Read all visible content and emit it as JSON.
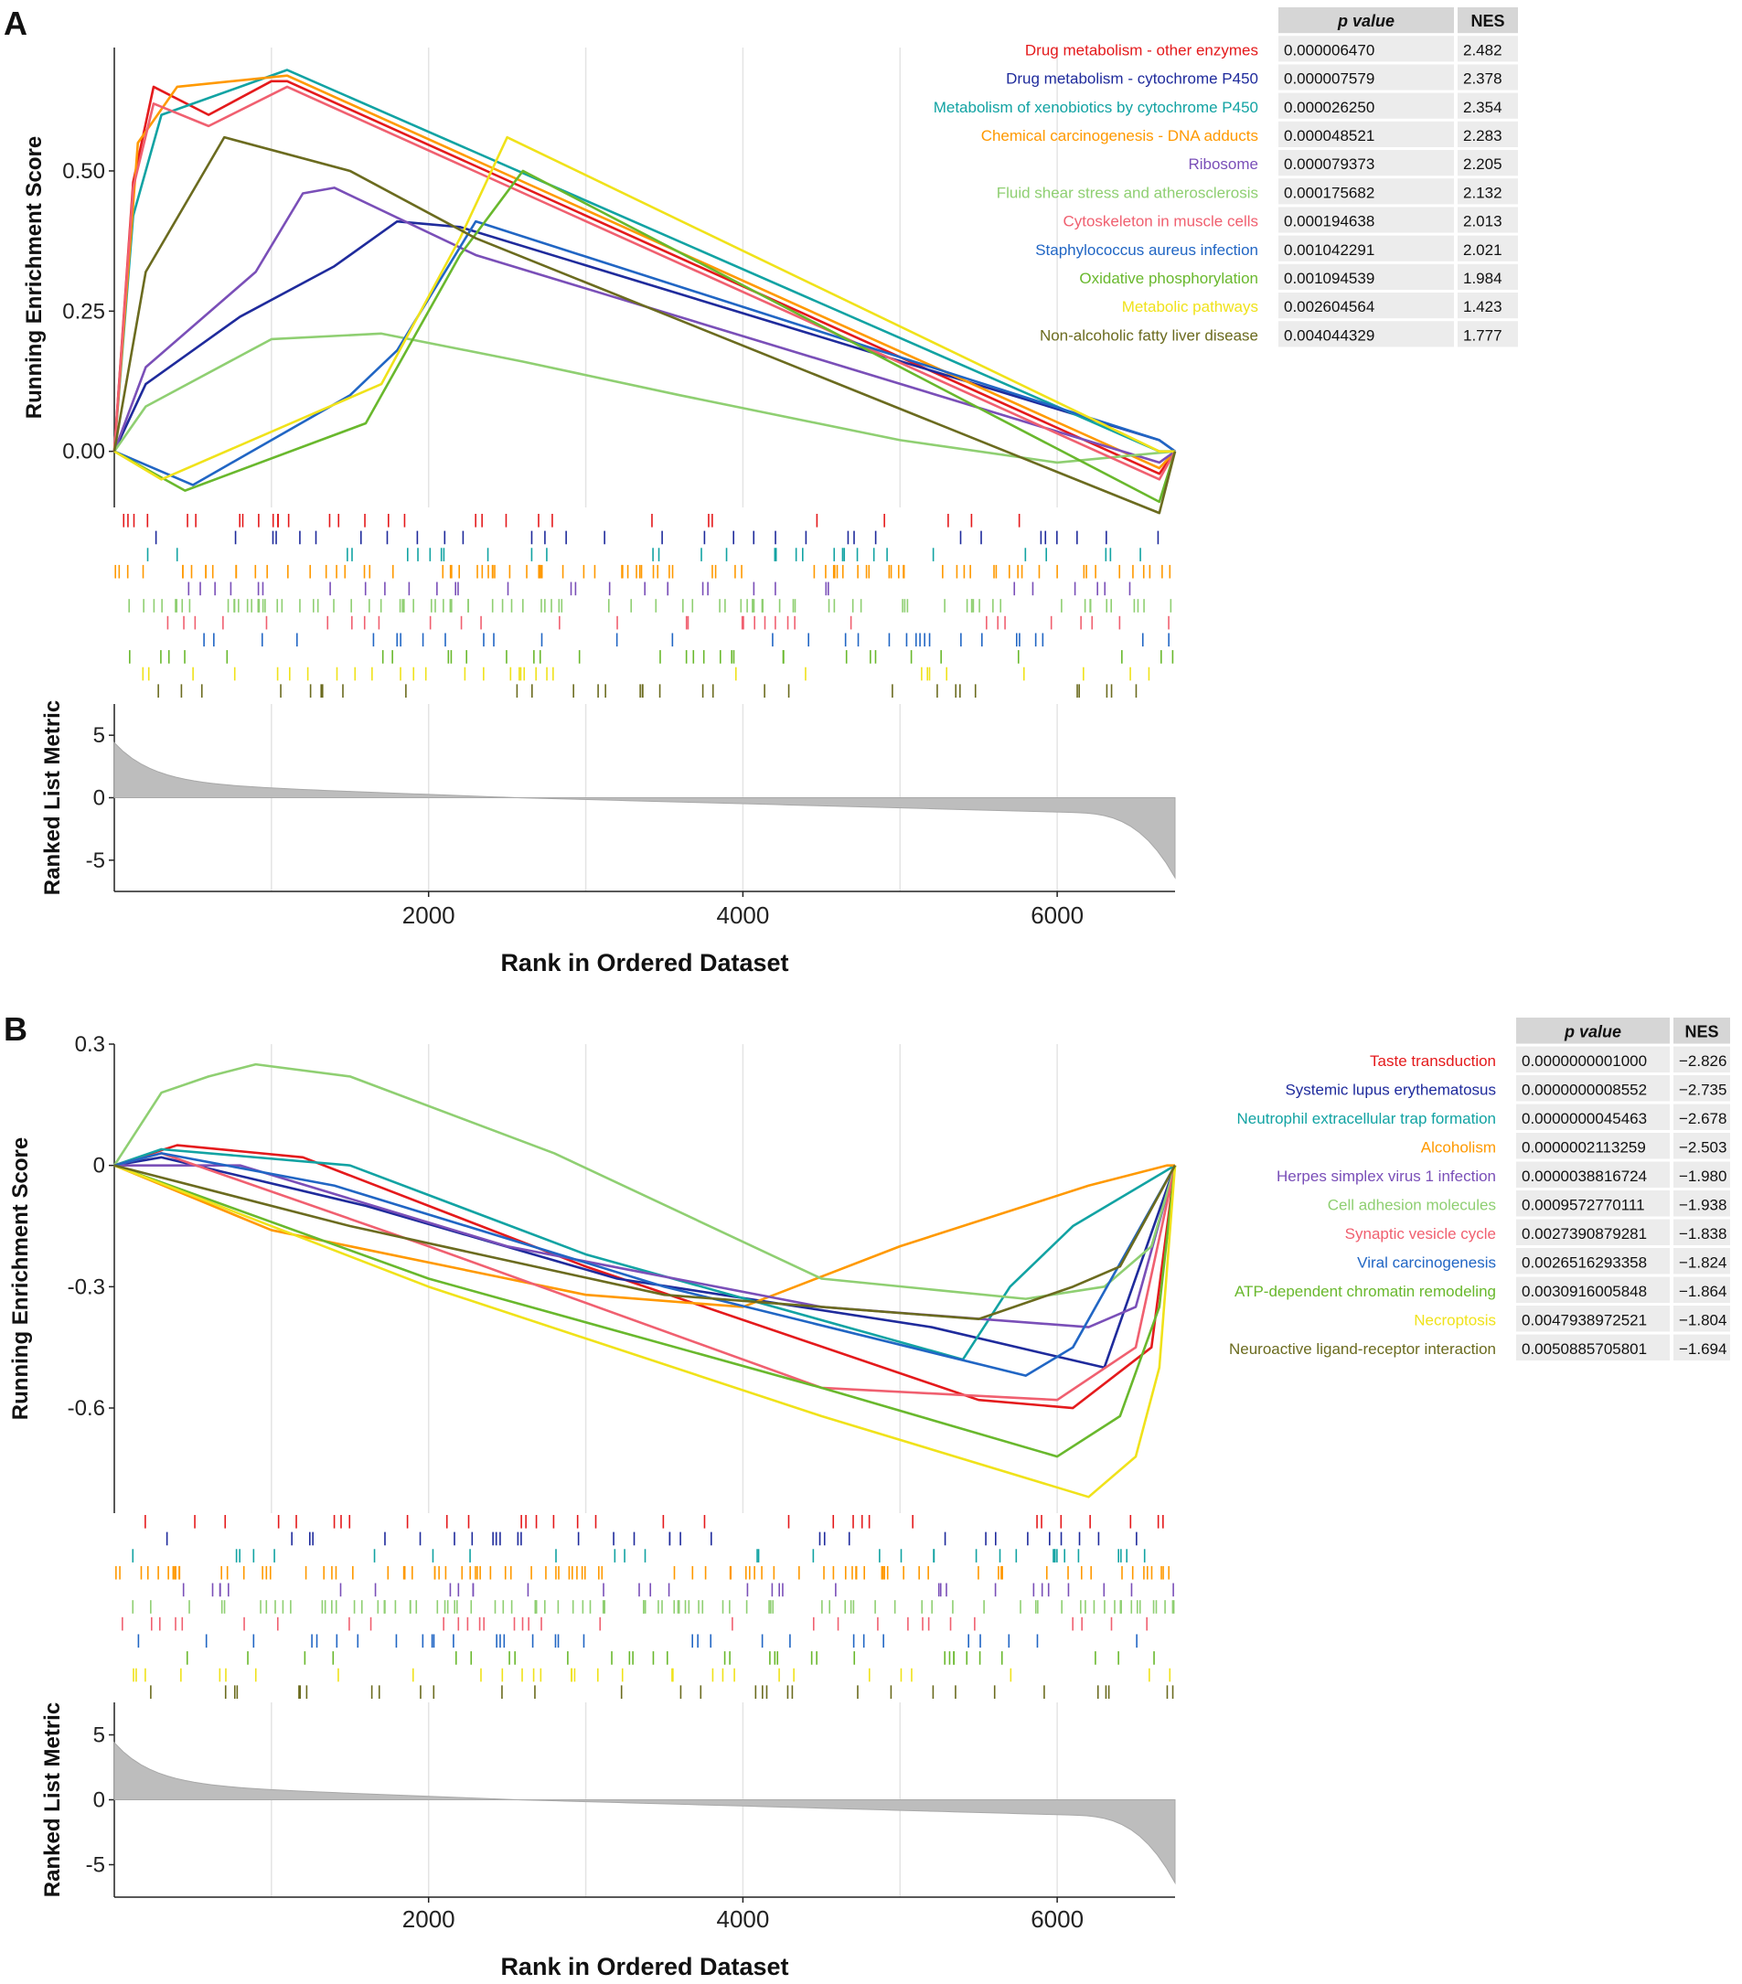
{
  "colors": {
    "red": "#e41a1c",
    "navy": "#1f2b9c",
    "teal": "#12a3a3",
    "orange": "#ff9900",
    "purple": "#7a4fb8",
    "lightgreen": "#8fcf72",
    "salmon": "#f06070",
    "blue": "#2166c4",
    "green": "#69b82d",
    "yellow": "#f0e21a",
    "olive": "#6b6b1f"
  },
  "table_header": {
    "pvalue": "p value",
    "nes": "NES"
  },
  "chart_data": [
    {
      "type": "line",
      "panel_label": "A",
      "title": "",
      "xlabel": "Rank in Ordered Dataset",
      "ylabel": "Running Enrichment Score",
      "ylabel_bottom": "Ranked List Metric",
      "xlim": [
        0,
        6750
      ],
      "ylim": [
        -0.1,
        0.72
      ],
      "yticks": [
        0,
        0.25,
        0.5
      ],
      "ytick_labels": [
        "0.00",
        "0.25",
        "0.50"
      ],
      "xticks": [
        2000,
        4000,
        6000
      ],
      "xtick_labels": [
        "2000",
        "4000",
        "6000"
      ],
      "metric_ylim": [
        -7.5,
        7.5
      ],
      "metric_yticks": [
        -5,
        0,
        5
      ],
      "metric_ytick_labels": [
        "-5",
        "0",
        "5"
      ],
      "legend_position": "top-right",
      "series": [
        {
          "name": "Drug metabolism - other enzymes",
          "color_key": "red",
          "pvalue": "0.000006470",
          "nes": "2.482",
          "points": [
            [
              0,
              0
            ],
            [
              120,
              0.48
            ],
            [
              250,
              0.65
            ],
            [
              600,
              0.6
            ],
            [
              1000,
              0.66
            ],
            [
              1100,
              0.66
            ],
            [
              6650,
              -0.04
            ],
            [
              6750,
              0
            ]
          ]
        },
        {
          "name": "Drug metabolism - cytochrome P450",
          "color_key": "navy",
          "pvalue": "0.000007579",
          "nes": "2.378",
          "points": [
            [
              0,
              0
            ],
            [
              200,
              0.12
            ],
            [
              800,
              0.24
            ],
            [
              1400,
              0.33
            ],
            [
              1800,
              0.41
            ],
            [
              2200,
              0.4
            ],
            [
              6650,
              0.02
            ],
            [
              6750,
              0
            ]
          ]
        },
        {
          "name": "Metabolism of xenobiotics by cytochrome P450",
          "color_key": "teal",
          "pvalue": "0.000026250",
          "nes": "2.354",
          "points": [
            [
              0,
              0
            ],
            [
              120,
              0.42
            ],
            [
              300,
              0.6
            ],
            [
              1100,
              0.68
            ],
            [
              6650,
              0.0
            ],
            [
              6750,
              0
            ]
          ]
        },
        {
          "name": "Chemical carcinogenesis - DNA adducts",
          "color_key": "orange",
          "pvalue": "0.000048521",
          "nes": "2.283",
          "points": [
            [
              0,
              0
            ],
            [
              150,
              0.55
            ],
            [
              400,
              0.65
            ],
            [
              1100,
              0.67
            ],
            [
              6650,
              -0.03
            ],
            [
              6750,
              0
            ]
          ]
        },
        {
          "name": "Ribosome",
          "color_key": "purple",
          "pvalue": "0.000079373",
          "nes": "2.205",
          "points": [
            [
              0,
              0
            ],
            [
              200,
              0.15
            ],
            [
              900,
              0.32
            ],
            [
              1200,
              0.46
            ],
            [
              1400,
              0.47
            ],
            [
              2300,
              0.35
            ],
            [
              6650,
              -0.02
            ],
            [
              6750,
              0
            ]
          ]
        },
        {
          "name": "Fluid shear stress and atherosclerosis",
          "color_key": "lightgreen",
          "pvalue": "0.000175682",
          "nes": "2.132",
          "points": [
            [
              0,
              0
            ],
            [
              200,
              0.08
            ],
            [
              1000,
              0.2
            ],
            [
              1700,
              0.21
            ],
            [
              2600,
              0.16
            ],
            [
              3600,
              0.1
            ],
            [
              5000,
              0.02
            ],
            [
              6000,
              -0.02
            ],
            [
              6750,
              0
            ]
          ]
        },
        {
          "name": "Cytoskeleton in muscle cells",
          "color_key": "salmon",
          "pvalue": "0.000194638",
          "nes": "2.013",
          "points": [
            [
              0,
              0
            ],
            [
              120,
              0.47
            ],
            [
              250,
              0.62
            ],
            [
              600,
              0.58
            ],
            [
              1100,
              0.65
            ],
            [
              6650,
              -0.05
            ],
            [
              6750,
              0
            ]
          ]
        },
        {
          "name": "Staphylococcus aureus infection",
          "color_key": "blue",
          "pvalue": "0.001042291",
          "nes": "2.021",
          "points": [
            [
              0,
              0
            ],
            [
              500,
              -0.06
            ],
            [
              1500,
              0.1
            ],
            [
              1800,
              0.18
            ],
            [
              2300,
              0.41
            ],
            [
              6650,
              0.02
            ],
            [
              6750,
              0
            ]
          ]
        },
        {
          "name": "Oxidative phosphorylation",
          "color_key": "green",
          "pvalue": "0.001094539",
          "nes": "1.984",
          "points": [
            [
              0,
              0
            ],
            [
              450,
              -0.07
            ],
            [
              1600,
              0.05
            ],
            [
              2200,
              0.35
            ],
            [
              2600,
              0.5
            ],
            [
              6650,
              -0.09
            ],
            [
              6750,
              0
            ]
          ]
        },
        {
          "name": "Metabolic pathways",
          "color_key": "yellow",
          "pvalue": "0.002604564",
          "nes": "1.423",
          "points": [
            [
              0,
              0
            ],
            [
              300,
              -0.05
            ],
            [
              1700,
              0.12
            ],
            [
              2200,
              0.38
            ],
            [
              2500,
              0.56
            ],
            [
              6650,
              0.0
            ],
            [
              6750,
              0
            ]
          ]
        },
        {
          "name": "Non-alcoholic fatty liver disease",
          "color_key": "olive",
          "pvalue": "0.004044329",
          "nes": "1.777",
          "points": [
            [
              0,
              0
            ],
            [
              200,
              0.32
            ],
            [
              700,
              0.56
            ],
            [
              1500,
              0.5
            ],
            [
              2300,
              0.38
            ],
            [
              6650,
              -0.11
            ],
            [
              6750,
              0
            ]
          ]
        }
      ]
    },
    {
      "type": "line",
      "panel_label": "B",
      "title": "",
      "xlabel": "Rank in Ordered Dataset",
      "ylabel": "Running Enrichment Score",
      "ylabel_bottom": "Ranked List Metric",
      "xlim": [
        0,
        6750
      ],
      "ylim": [
        -0.86,
        0.3
      ],
      "yticks": [
        -0.6,
        -0.3,
        0,
        0.3
      ],
      "ytick_labels": [
        "-0.6",
        "-0.3",
        "0",
        "0.3"
      ],
      "xticks": [
        2000,
        4000,
        6000
      ],
      "xtick_labels": [
        "2000",
        "4000",
        "6000"
      ],
      "metric_ylim": [
        -7.5,
        7.5
      ],
      "metric_yticks": [
        -5,
        0,
        5
      ],
      "metric_ytick_labels": [
        "-5",
        "0",
        "5"
      ],
      "legend_position": "top-right",
      "series": [
        {
          "name": "Taste transduction",
          "color_key": "red",
          "pvalue": "0.0000000001000",
          "nes": "−2.826",
          "points": [
            [
              0,
              0
            ],
            [
              400,
              0.05
            ],
            [
              1200,
              0.02
            ],
            [
              3000,
              -0.25
            ],
            [
              5500,
              -0.58
            ],
            [
              6100,
              -0.6
            ],
            [
              6600,
              -0.45
            ],
            [
              6750,
              0
            ]
          ]
        },
        {
          "name": "Systemic lupus erythematosus",
          "color_key": "navy",
          "pvalue": "0.0000000008552",
          "nes": "−2.735",
          "points": [
            [
              0,
              0
            ],
            [
              300,
              0.02
            ],
            [
              1600,
              -0.1
            ],
            [
              3200,
              -0.28
            ],
            [
              5200,
              -0.4
            ],
            [
              6300,
              -0.5
            ],
            [
              6750,
              0
            ]
          ]
        },
        {
          "name": "Neutrophil extracellular trap formation",
          "color_key": "teal",
          "pvalue": "0.0000000045463",
          "nes": "−2.678",
          "points": [
            [
              0,
              0
            ],
            [
              300,
              0.04
            ],
            [
              1500,
              0.0
            ],
            [
              3000,
              -0.22
            ],
            [
              5400,
              -0.48
            ],
            [
              5700,
              -0.3
            ],
            [
              6100,
              -0.15
            ],
            [
              6750,
              0
            ]
          ]
        },
        {
          "name": "Alcoholism",
          "color_key": "orange",
          "pvalue": "0.0000002113259",
          "nes": "−2.503",
          "points": [
            [
              0,
              0
            ],
            [
              1000,
              -0.16
            ],
            [
              3000,
              -0.32
            ],
            [
              4000,
              -0.35
            ],
            [
              5000,
              -0.2
            ],
            [
              6200,
              -0.05
            ],
            [
              6700,
              0
            ],
            [
              6750,
              0
            ]
          ]
        },
        {
          "name": "Herpes simplex virus 1 infection",
          "color_key": "purple",
          "pvalue": "0.0000038816724",
          "nes": "−1.980",
          "points": [
            [
              0,
              0
            ],
            [
              800,
              0.0
            ],
            [
              2500,
              -0.2
            ],
            [
              4500,
              -0.35
            ],
            [
              6200,
              -0.4
            ],
            [
              6500,
              -0.35
            ],
            [
              6750,
              0
            ]
          ]
        },
        {
          "name": "Cell adhesion molecules",
          "color_key": "lightgreen",
          "pvalue": "0.0009572770111",
          "nes": "−1.938",
          "points": [
            [
              0,
              0
            ],
            [
              300,
              0.18
            ],
            [
              600,
              0.22
            ],
            [
              900,
              0.25
            ],
            [
              1500,
              0.22
            ],
            [
              2800,
              0.03
            ],
            [
              4500,
              -0.28
            ],
            [
              5800,
              -0.33
            ],
            [
              6300,
              -0.3
            ],
            [
              6600,
              -0.2
            ],
            [
              6750,
              0
            ]
          ]
        },
        {
          "name": "Synaptic vesicle cycle",
          "color_key": "salmon",
          "pvalue": "0.0027390879281",
          "nes": "−1.838",
          "points": [
            [
              0,
              0
            ],
            [
              300,
              0.03
            ],
            [
              2000,
              -0.2
            ],
            [
              4500,
              -0.55
            ],
            [
              6000,
              -0.58
            ],
            [
              6500,
              -0.45
            ],
            [
              6750,
              0
            ]
          ]
        },
        {
          "name": "Viral carcinogenesis",
          "color_key": "blue",
          "pvalue": "0.0026516293358",
          "nes": "−1.824",
          "points": [
            [
              0,
              0
            ],
            [
              300,
              0.03
            ],
            [
              1400,
              -0.05
            ],
            [
              3500,
              -0.3
            ],
            [
              5800,
              -0.52
            ],
            [
              6100,
              -0.45
            ],
            [
              6750,
              0
            ]
          ]
        },
        {
          "name": "ATP-dependent chromatin remodeling",
          "color_key": "green",
          "pvalue": "0.0030916005848",
          "nes": "−1.864",
          "points": [
            [
              0,
              0
            ],
            [
              2000,
              -0.28
            ],
            [
              4500,
              -0.55
            ],
            [
              6000,
              -0.72
            ],
            [
              6400,
              -0.62
            ],
            [
              6650,
              -0.35
            ],
            [
              6750,
              0
            ]
          ]
        },
        {
          "name": "Necroptosis",
          "color_key": "yellow",
          "pvalue": "0.0047938972521",
          "nes": "−1.804",
          "points": [
            [
              0,
              0
            ],
            [
              2000,
              -0.3
            ],
            [
              4500,
              -0.62
            ],
            [
              6200,
              -0.82
            ],
            [
              6500,
              -0.72
            ],
            [
              6650,
              -0.5
            ],
            [
              6750,
              0
            ]
          ]
        },
        {
          "name": "Neuroactive ligand-receptor interaction",
          "color_key": "olive",
          "pvalue": "0.0050885705801",
          "nes": "−1.694",
          "points": [
            [
              0,
              0
            ],
            [
              1500,
              -0.15
            ],
            [
              3500,
              -0.32
            ],
            [
              5500,
              -0.38
            ],
            [
              6100,
              -0.3
            ],
            [
              6400,
              -0.25
            ],
            [
              6750,
              0
            ]
          ]
        }
      ]
    }
  ]
}
